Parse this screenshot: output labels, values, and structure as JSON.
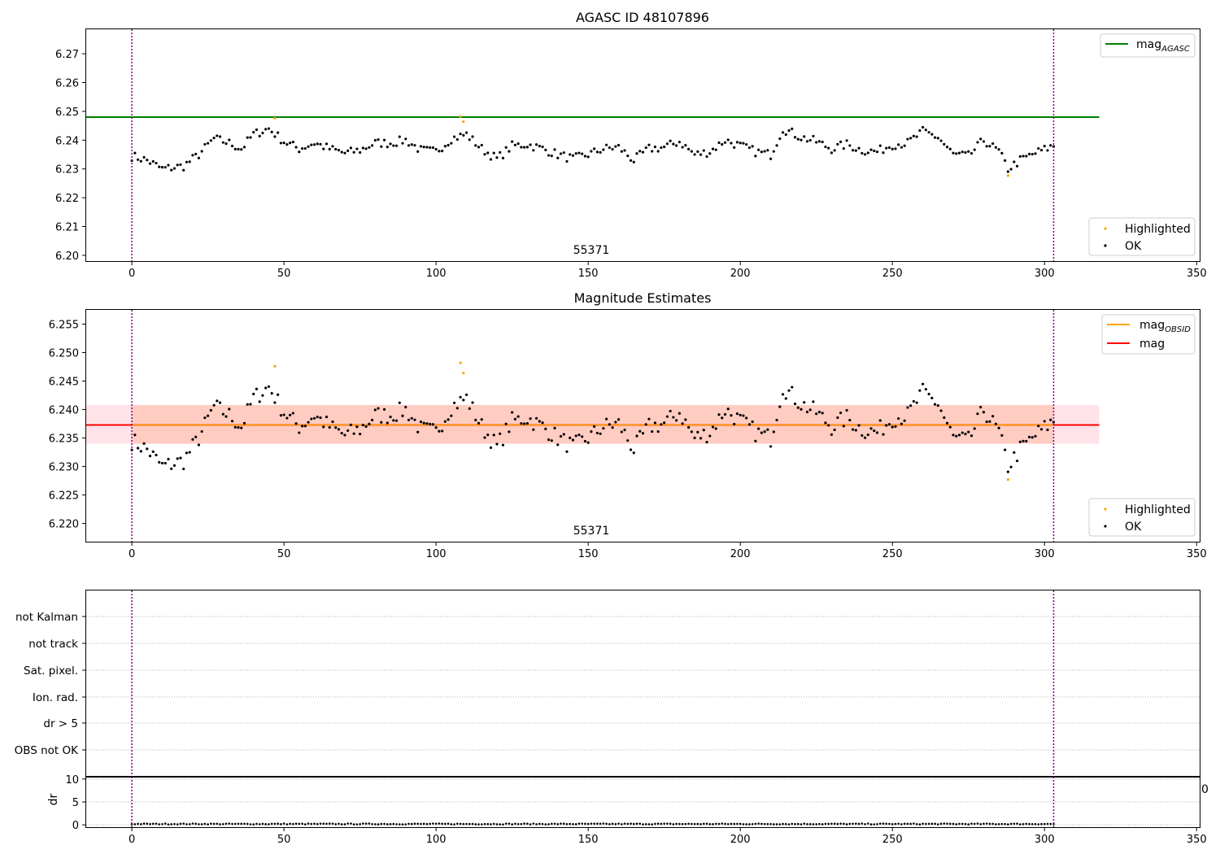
{
  "figure": {
    "background": "#ffffff"
  },
  "colors": {
    "ok": "#000000",
    "highlighted": "#ffa500",
    "agasc_line": "#008000",
    "mag_line": "#ff0000",
    "obsid_line": "#ffa500",
    "band_fill": "#ffc0cb",
    "band_inner": "#ffa07a",
    "vline": "#800080",
    "grid": "#b0b0b0"
  },
  "chart_data": [
    {
      "type": "scatter",
      "title": "AGASC ID 48107896",
      "xlim": [
        -15,
        351
      ],
      "ylim": [
        6.198,
        6.2785
      ],
      "xticks": [
        0,
        50,
        100,
        150,
        200,
        250,
        300,
        350
      ],
      "yticks": [
        6.2,
        6.21,
        6.22,
        6.23,
        6.24,
        6.25,
        6.26,
        6.27
      ],
      "ytick_labels": [
        "6.20",
        "6.21",
        "6.22",
        "6.23",
        "6.24",
        "6.25",
        "6.26",
        "6.27"
      ],
      "hlines": [
        {
          "name": "magAGASC",
          "y": 6.248,
          "x": [
            -15,
            318
          ],
          "color_key": "agasc_line"
        }
      ],
      "vlines": [
        0,
        303
      ],
      "annotation": {
        "text": "55371",
        "x": 151
      },
      "legend_upper": [
        {
          "label": "mag",
          "sub": "AGASC",
          "color_key": "agasc_line"
        }
      ],
      "legend_lower": [
        {
          "label": "Highlighted",
          "color_key": "highlighted"
        },
        {
          "label": "OK",
          "color_key": "ok"
        }
      ],
      "highlighted_points": [
        [
          47,
          6.2476
        ],
        [
          108,
          6.2482
        ],
        [
          109,
          6.2464
        ],
        [
          288,
          6.2277
        ]
      ]
    },
    {
      "type": "scatter",
      "title": "Magnitude Estimates",
      "xlim": [
        -15,
        351
      ],
      "ylim": [
        6.2168,
        6.2575
      ],
      "xticks": [
        0,
        50,
        100,
        150,
        200,
        250,
        300,
        350
      ],
      "yticks": [
        6.22,
        6.225,
        6.23,
        6.235,
        6.24,
        6.245,
        6.25,
        6.255
      ],
      "ytick_labels": [
        "6.220",
        "6.225",
        "6.230",
        "6.235",
        "6.240",
        "6.245",
        "6.250",
        "6.255"
      ],
      "hlines": [
        {
          "name": "mag",
          "y": 6.2373,
          "x": [
            -15,
            318
          ],
          "color_key": "mag_line"
        },
        {
          "name": "magOBSID",
          "y": 6.2373,
          "x": [
            0,
            303
          ],
          "color_key": "obsid_line"
        }
      ],
      "bands": [
        {
          "y": [
            6.234,
            6.2408
          ],
          "x": [
            -15,
            318
          ],
          "color_key": "band_fill"
        },
        {
          "y": [
            6.234,
            6.2408
          ],
          "x": [
            0,
            303
          ],
          "color_key": "band_inner"
        }
      ],
      "vlines": [
        0,
        303
      ],
      "annotation": {
        "text": "55371",
        "x": 151
      },
      "legend_upper": [
        {
          "label": "mag",
          "sub": "OBSID",
          "color_key": "obsid_line"
        },
        {
          "label": "mag",
          "sub": "",
          "color_key": "mag_line"
        }
      ],
      "legend_lower": [
        {
          "label": "Highlighted",
          "color_key": "highlighted"
        },
        {
          "label": "OK",
          "color_key": "ok"
        }
      ],
      "highlighted_points": [
        [
          47,
          6.2476
        ],
        [
          108,
          6.2482
        ],
        [
          109,
          6.2464
        ],
        [
          288,
          6.2277
        ]
      ]
    },
    {
      "type": "scatter",
      "title": "",
      "categories": [
        "not Kalman",
        "not track",
        "Sat. pixel.",
        "Ion. rad.",
        "dr > 5",
        "OBS not OK"
      ],
      "xlim": [
        -15,
        351
      ],
      "vlines": [
        0,
        303
      ],
      "grid": true
    },
    {
      "type": "scatter",
      "title": "",
      "ylabel": "dr",
      "xlim": [
        -15,
        351
      ],
      "ylim": [
        -0.5,
        10.5
      ],
      "xticks": [
        0,
        50,
        100,
        150,
        200,
        250,
        300,
        350
      ],
      "yticks": [
        0,
        5,
        10
      ],
      "vlines": [
        0,
        303
      ],
      "series_values": "approximately 0.0-0.3 at every sample 0-303"
    }
  ],
  "stray_label": "0"
}
